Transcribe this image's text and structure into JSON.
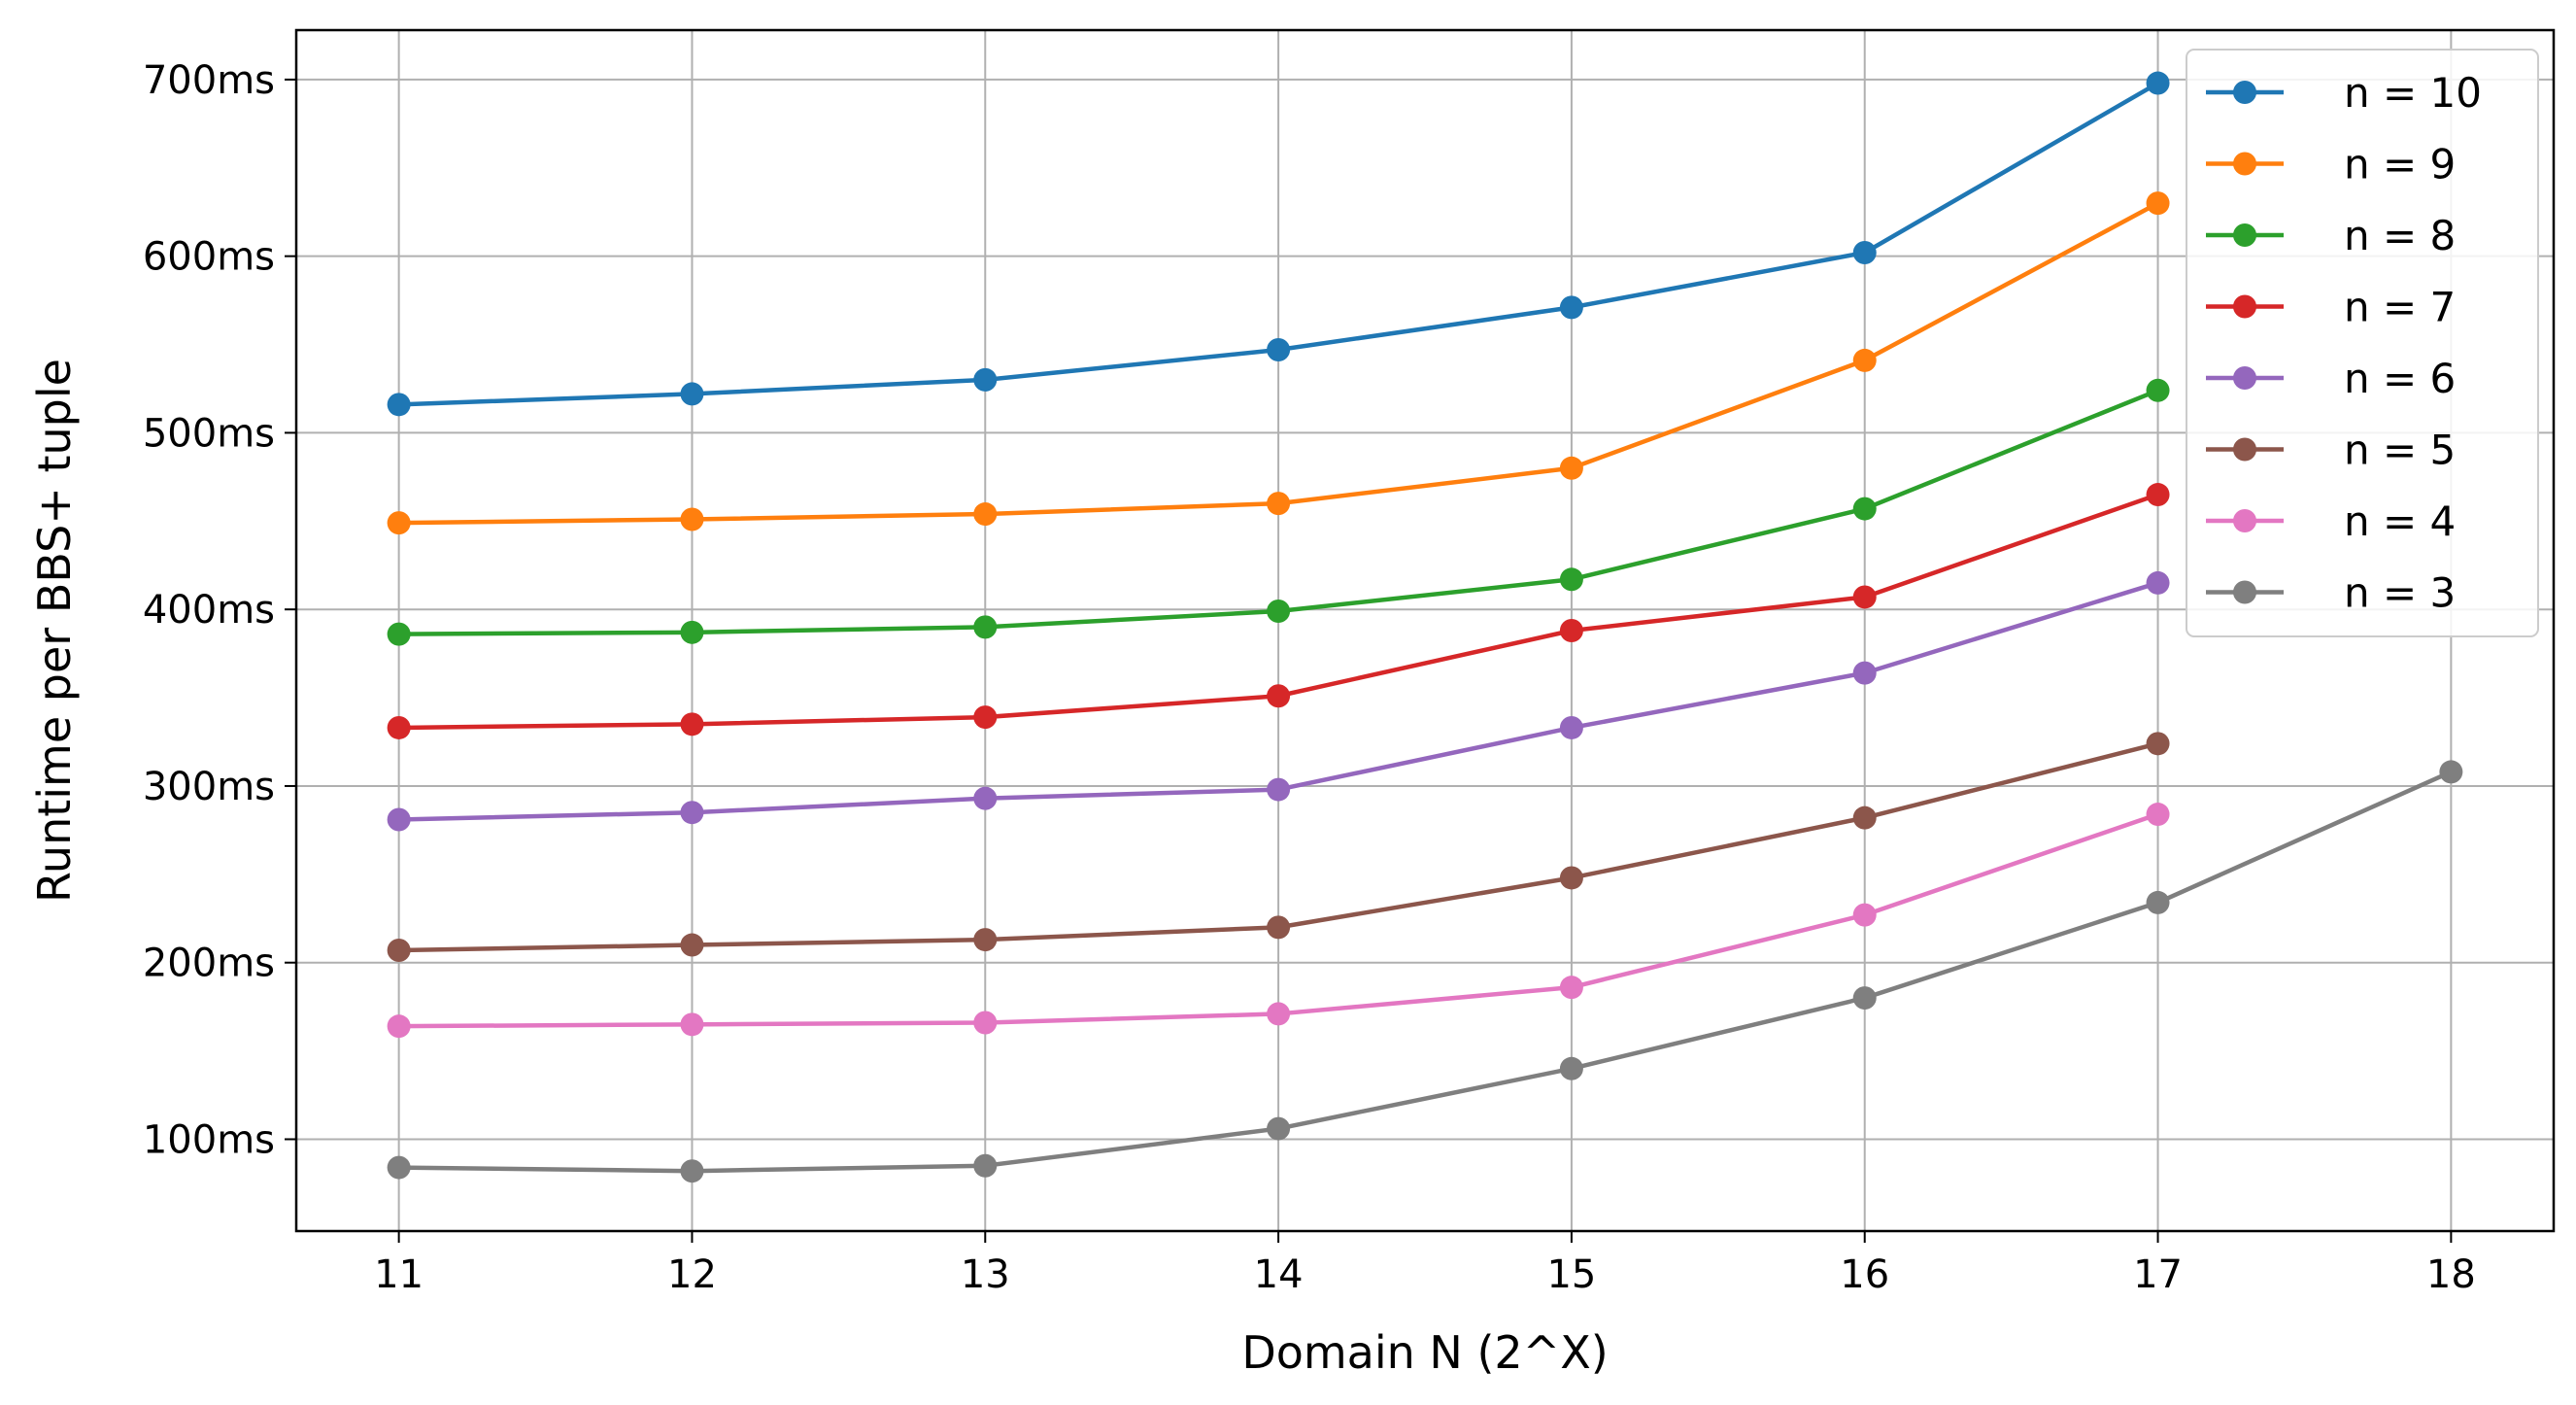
{
  "chart_data": {
    "type": "line",
    "xlabel": "Domain N (2^X)",
    "ylabel": "Runtime per BBS+ tuple",
    "x_ticks": [
      11,
      12,
      13,
      14,
      15,
      16,
      17,
      18
    ],
    "x_tick_labels": [
      "11",
      "12",
      "13",
      "14",
      "15",
      "16",
      "17",
      "18"
    ],
    "y_ticks": [
      100,
      200,
      300,
      400,
      500,
      600,
      700
    ],
    "y_tick_labels": [
      "100ms",
      "200ms",
      "300ms",
      "400ms",
      "500ms",
      "600ms",
      "700ms"
    ],
    "xlim": [
      10.65,
      18.35
    ],
    "ylim": [
      48,
      728
    ],
    "grid": true,
    "legend_position": "top-right",
    "series": [
      {
        "name": "n = 10",
        "color": "#1f77b4",
        "x": [
          11,
          12,
          13,
          14,
          15,
          16,
          17
        ],
        "y": [
          516,
          522,
          530,
          547,
          571,
          602,
          698
        ]
      },
      {
        "name": "n = 9",
        "color": "#ff7f0e",
        "x": [
          11,
          12,
          13,
          14,
          15,
          16,
          17
        ],
        "y": [
          449,
          451,
          454,
          460,
          480,
          541,
          630
        ]
      },
      {
        "name": "n = 8",
        "color": "#2ca02c",
        "x": [
          11,
          12,
          13,
          14,
          15,
          16,
          17
        ],
        "y": [
          386,
          387,
          390,
          399,
          417,
          457,
          524
        ]
      },
      {
        "name": "n = 7",
        "color": "#d62728",
        "x": [
          11,
          12,
          13,
          14,
          15,
          16,
          17
        ],
        "y": [
          333,
          335,
          339,
          351,
          388,
          407,
          465
        ]
      },
      {
        "name": "n = 6",
        "color": "#9467bd",
        "x": [
          11,
          12,
          13,
          14,
          15,
          16,
          17
        ],
        "y": [
          281,
          285,
          293,
          298,
          333,
          364,
          415
        ]
      },
      {
        "name": "n = 5",
        "color": "#8c564b",
        "x": [
          11,
          12,
          13,
          14,
          15,
          16,
          17
        ],
        "y": [
          207,
          210,
          213,
          220,
          248,
          282,
          324
        ]
      },
      {
        "name": "n = 4",
        "color": "#e377c2",
        "x": [
          11,
          12,
          13,
          14,
          15,
          16,
          17
        ],
        "y": [
          164,
          165,
          166,
          171,
          186,
          227,
          284
        ]
      },
      {
        "name": "n = 3",
        "color": "#7f7f7f",
        "x": [
          11,
          12,
          13,
          14,
          15,
          16,
          17,
          18
        ],
        "y": [
          84,
          82,
          85,
          106,
          140,
          180,
          234,
          308
        ]
      }
    ]
  }
}
